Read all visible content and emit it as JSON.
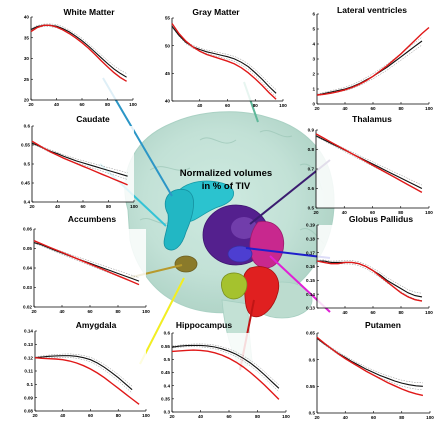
{
  "figure": {
    "center_label": {
      "line1": "Normalized volumes",
      "line2": "in % of TIV"
    },
    "colors": {
      "fit": "#e01818",
      "mean": "#111111",
      "ci": "#8a8a8a",
      "axis": "#000000"
    }
  },
  "chart_data": [
    {
      "type": "line",
      "title": "White Matter",
      "xticks": [
        "20",
        "40",
        "60",
        "80",
        "100"
      ],
      "xlim": [
        20,
        100
      ],
      "yticks": [
        "20",
        "25",
        "30",
        "35",
        "40"
      ],
      "ylim": [
        20,
        40
      ],
      "series": [
        {
          "role": "fit",
          "x": [
            20,
            25,
            30,
            35,
            40,
            45,
            50,
            55,
            60,
            65,
            70,
            75,
            80,
            85,
            90,
            95
          ],
          "y": [
            36.5,
            37.5,
            38,
            38,
            37.6,
            36.9,
            36,
            35,
            33.8,
            32.5,
            31,
            29.5,
            28,
            26.6,
            25.4,
            24.5
          ]
        },
        {
          "role": "mean",
          "x": [
            20,
            25,
            30,
            35,
            40,
            45,
            50,
            55,
            60,
            65,
            70,
            75,
            80,
            85,
            90,
            95
          ],
          "y": [
            37,
            37.7,
            38,
            38,
            37.8,
            37.2,
            36.4,
            35.4,
            34.3,
            33,
            31.6,
            30.2,
            28.8,
            27.5,
            26.4,
            25.5
          ]
        }
      ]
    },
    {
      "type": "line",
      "title": "Gray Matter",
      "xticks": [
        "40",
        "60",
        "80",
        "100"
      ],
      "xlim": [
        20,
        100
      ],
      "yticks": [
        "40",
        "45",
        "50",
        "55"
      ],
      "ylim": [
        40,
        55
      ],
      "series": [
        {
          "role": "fit",
          "x": [
            20,
            25,
            30,
            35,
            40,
            45,
            50,
            55,
            60,
            65,
            70,
            75,
            80,
            85,
            90,
            95
          ],
          "y": [
            54,
            52.2,
            50.8,
            49.8,
            49,
            48.4,
            48,
            47.6,
            47.2,
            46.7,
            46,
            45.1,
            44,
            42.8,
            41.5,
            40.3
          ]
        },
        {
          "role": "mean",
          "x": [
            20,
            25,
            30,
            35,
            40,
            45,
            50,
            55,
            60,
            65,
            70,
            75,
            80,
            85,
            90,
            95
          ],
          "y": [
            53.5,
            51.9,
            50.6,
            49.8,
            49.3,
            48.9,
            48.6,
            48.3,
            48,
            47.6,
            47,
            46.2,
            45.1,
            43.9,
            42.6,
            41.4
          ]
        }
      ]
    },
    {
      "type": "line",
      "title": "Lateral ventricles",
      "xticks": [
        "20",
        "40",
        "60",
        "80",
        "100"
      ],
      "xlim": [
        20,
        100
      ],
      "yticks": [
        "0",
        "1",
        "2",
        "3",
        "4",
        "5",
        "6"
      ],
      "ylim": [
        0,
        6
      ],
      "series": [
        {
          "role": "fit",
          "x": [
            20,
            25,
            30,
            35,
            40,
            45,
            50,
            55,
            60,
            65,
            70,
            75,
            80,
            85,
            90,
            95,
            100
          ],
          "y": [
            0.6,
            0.65,
            0.72,
            0.82,
            0.95,
            1.1,
            1.3,
            1.55,
            1.85,
            2.2,
            2.55,
            2.95,
            3.35,
            3.8,
            4.25,
            4.7,
            5.1
          ]
        },
        {
          "role": "mean",
          "x": [
            20,
            25,
            30,
            35,
            40,
            45,
            50,
            55,
            60,
            65,
            70,
            75,
            80,
            85,
            90,
            95
          ],
          "y": [
            0.6,
            0.7,
            0.8,
            0.9,
            1.0,
            1.15,
            1.35,
            1.6,
            1.85,
            2.15,
            2.45,
            2.8,
            3.15,
            3.5,
            3.85,
            4.2
          ]
        }
      ]
    },
    {
      "type": "line",
      "title": "Caudate",
      "xticks": [
        "20",
        "40",
        "60",
        "80",
        "100"
      ],
      "xlim": [
        20,
        100
      ],
      "yticks": [
        "0.4",
        "0.45",
        "0.5",
        "0.55",
        "0.6"
      ],
      "ylim": [
        0.4,
        0.6
      ],
      "series": [
        {
          "role": "fit",
          "x": [
            20,
            25,
            30,
            35,
            40,
            45,
            50,
            55,
            60,
            65,
            70,
            75,
            80,
            85,
            90,
            95
          ],
          "y": [
            0.56,
            0.55,
            0.54,
            0.531,
            0.523,
            0.515,
            0.508,
            0.501,
            0.494,
            0.487,
            0.48,
            0.473,
            0.466,
            0.459,
            0.452,
            0.445
          ]
        },
        {
          "role": "mean",
          "x": [
            20,
            25,
            30,
            35,
            40,
            45,
            50,
            55,
            60,
            65,
            70,
            75,
            80,
            85,
            90,
            95
          ],
          "y": [
            0.555,
            0.548,
            0.54,
            0.533,
            0.527,
            0.52,
            0.514,
            0.508,
            0.503,
            0.498,
            0.493,
            0.488,
            0.483,
            0.478,
            0.473,
            0.468
          ]
        }
      ]
    },
    {
      "type": "line",
      "title": "Thalamus",
      "xticks": [
        "20",
        "40",
        "60",
        "80",
        "100"
      ],
      "xlim": [
        20,
        100
      ],
      "yticks": [
        "0.5",
        "0.6",
        "0.7",
        "0.8",
        "0.9"
      ],
      "ylim": [
        0.5,
        0.9
      ],
      "series": [
        {
          "role": "fit",
          "x": [
            20,
            25,
            30,
            35,
            40,
            45,
            50,
            55,
            60,
            65,
            70,
            75,
            80,
            85,
            90,
            95
          ],
          "y": [
            0.88,
            0.86,
            0.84,
            0.82,
            0.8,
            0.78,
            0.76,
            0.74,
            0.72,
            0.7,
            0.68,
            0.66,
            0.64,
            0.62,
            0.6,
            0.58
          ]
        },
        {
          "role": "mean",
          "x": [
            20,
            25,
            30,
            35,
            40,
            45,
            50,
            55,
            60,
            65,
            70,
            75,
            80,
            85,
            90,
            95
          ],
          "y": [
            0.87,
            0.852,
            0.834,
            0.816,
            0.798,
            0.78,
            0.762,
            0.744,
            0.726,
            0.708,
            0.69,
            0.672,
            0.654,
            0.636,
            0.618,
            0.6
          ]
        }
      ]
    },
    {
      "type": "line",
      "title": "Accumbens",
      "xticks": [
        "20",
        "40",
        "60",
        "80",
        "100"
      ],
      "xlim": [
        20,
        100
      ],
      "yticks": [
        "0.02",
        "0.03",
        "0.04",
        "0.05",
        "0.06"
      ],
      "ylim": [
        0.02,
        0.06
      ],
      "series": [
        {
          "role": "fit",
          "x": [
            20,
            25,
            30,
            35,
            40,
            45,
            50,
            55,
            60,
            65,
            70,
            75,
            80,
            85,
            90,
            95
          ],
          "y": [
            0.054,
            0.0525,
            0.051,
            0.0495,
            0.048,
            0.0465,
            0.045,
            0.0435,
            0.042,
            0.0405,
            0.039,
            0.0375,
            0.036,
            0.0345,
            0.033,
            0.0315
          ]
        },
        {
          "role": "mean",
          "x": [
            20,
            25,
            30,
            35,
            40,
            45,
            50,
            55,
            60,
            65,
            70,
            75,
            80,
            85,
            90,
            95
          ],
          "y": [
            0.053,
            0.052,
            0.0505,
            0.049,
            0.0477,
            0.0463,
            0.045,
            0.0437,
            0.0424,
            0.0411,
            0.0398,
            0.0385,
            0.0372,
            0.0359,
            0.0346,
            0.0333
          ]
        }
      ]
    },
    {
      "type": "line",
      "title": "Globus Pallidus",
      "xticks": [
        "40",
        "60",
        "80",
        "100"
      ],
      "xlim": [
        20,
        100
      ],
      "yticks": [
        "0.13",
        "0.14",
        "0.15",
        "0.16",
        "0.17",
        "0.18",
        "0.19"
      ],
      "ylim": [
        0.13,
        0.19
      ],
      "series": [
        {
          "role": "fit",
          "x": [
            20,
            25,
            30,
            35,
            40,
            45,
            50,
            55,
            60,
            65,
            70,
            75,
            80,
            85,
            90,
            95
          ],
          "y": [
            0.164,
            0.163,
            0.162,
            0.162,
            0.163,
            0.163,
            0.162,
            0.16,
            0.157,
            0.153,
            0.149,
            0.145,
            0.141,
            0.138,
            0.136,
            0.135
          ]
        },
        {
          "role": "mean",
          "x": [
            20,
            25,
            30,
            35,
            40,
            45,
            50,
            55,
            60,
            65,
            70,
            75,
            80,
            85,
            90,
            95
          ],
          "y": [
            0.164,
            0.164,
            0.163,
            0.163,
            0.163,
            0.163,
            0.162,
            0.16,
            0.157,
            0.154,
            0.15,
            0.147,
            0.144,
            0.141,
            0.139,
            0.138
          ]
        }
      ]
    },
    {
      "type": "line",
      "title": "Amygdala",
      "xticks": [
        "20",
        "40",
        "60",
        "80",
        "100"
      ],
      "xlim": [
        20,
        100
      ],
      "yticks": [
        "0.08",
        "0.09",
        "0.1",
        "0.11",
        "0.12",
        "0.13",
        "0.14"
      ],
      "ylim": [
        0.08,
        0.14
      ],
      "series": [
        {
          "role": "fit",
          "x": [
            20,
            25,
            30,
            35,
            40,
            45,
            50,
            55,
            60,
            65,
            70,
            75,
            80,
            85,
            90,
            95
          ],
          "y": [
            0.12,
            0.1195,
            0.1192,
            0.119,
            0.1185,
            0.1175,
            0.116,
            0.114,
            0.1115,
            0.1085,
            0.105,
            0.101,
            0.097,
            0.093,
            0.089,
            0.085
          ]
        },
        {
          "role": "mean",
          "x": [
            20,
            25,
            30,
            35,
            40,
            45,
            50,
            55,
            60,
            65,
            70,
            75,
            80,
            85,
            90
          ],
          "y": [
            0.12,
            0.1205,
            0.121,
            0.1213,
            0.1215,
            0.1215,
            0.121,
            0.12,
            0.1185,
            0.116,
            0.1128,
            0.109,
            0.105,
            0.1005,
            0.096
          ]
        }
      ]
    },
    {
      "type": "line",
      "title": "Hippocampus",
      "xticks": [
        "20",
        "40",
        "60",
        "80",
        "100"
      ],
      "xlim": [
        20,
        100
      ],
      "yticks": [
        "0.3",
        "0.35",
        "0.4",
        "0.45",
        "0.5",
        "0.55",
        "0.6"
      ],
      "ylim": [
        0.3,
        0.6
      ],
      "series": [
        {
          "role": "fit",
          "x": [
            20,
            25,
            30,
            35,
            40,
            45,
            50,
            55,
            60,
            65,
            70,
            75,
            80,
            85,
            90,
            95
          ],
          "y": [
            0.53,
            0.532,
            0.534,
            0.535,
            0.534,
            0.531,
            0.525,
            0.516,
            0.504,
            0.489,
            0.471,
            0.45,
            0.427,
            0.402,
            0.375,
            0.348
          ]
        },
        {
          "role": "mean",
          "x": [
            20,
            25,
            30,
            35,
            40,
            45,
            50,
            55,
            60,
            65,
            70,
            75,
            80,
            85,
            90,
            95
          ],
          "y": [
            0.546,
            0.55,
            0.552,
            0.553,
            0.553,
            0.551,
            0.547,
            0.54,
            0.531,
            0.519,
            0.504,
            0.486,
            0.465,
            0.441,
            0.415,
            0.39
          ]
        }
      ]
    },
    {
      "type": "line",
      "title": "Putamen",
      "xticks": [
        "20",
        "40",
        "60",
        "80",
        "100"
      ],
      "xlim": [
        20,
        100
      ],
      "yticks": [
        "0.5",
        "0.55",
        "0.6",
        "0.65"
      ],
      "ylim": [
        0.5,
        0.65
      ],
      "series": [
        {
          "role": "fit",
          "x": [
            20,
            25,
            30,
            35,
            40,
            45,
            50,
            55,
            60,
            65,
            70,
            75,
            80,
            85,
            90,
            95
          ],
          "y": [
            0.642,
            0.631,
            0.621,
            0.611,
            0.602,
            0.594,
            0.586,
            0.578,
            0.571,
            0.564,
            0.557,
            0.551,
            0.545,
            0.54,
            0.536,
            0.533
          ]
        },
        {
          "role": "mean",
          "x": [
            20,
            25,
            30,
            35,
            40,
            45,
            50,
            55,
            60,
            65,
            70,
            75,
            80,
            85,
            90,
            95
          ],
          "y": [
            0.64,
            0.63,
            0.621,
            0.612,
            0.604,
            0.596,
            0.589,
            0.582,
            0.576,
            0.57,
            0.565,
            0.56,
            0.556,
            0.553,
            0.551,
            0.55
          ]
        }
      ]
    }
  ]
}
